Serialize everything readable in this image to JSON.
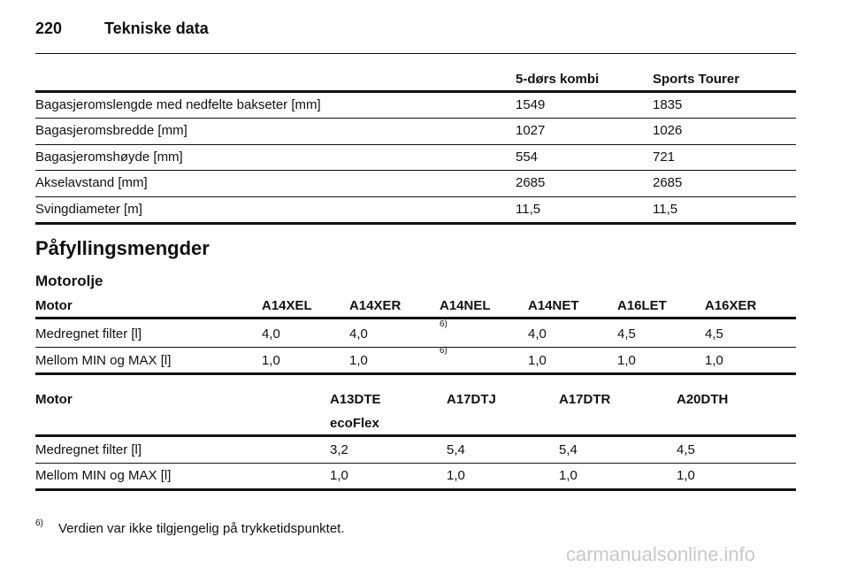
{
  "header": {
    "page_number": "220",
    "title": "Tekniske data"
  },
  "table1": {
    "header": [
      "5-dørs kombi",
      "Sports Tourer"
    ],
    "rows": [
      [
        "Bagasjeromslengde med nedfelte bakseter [mm]",
        "1549",
        "1835"
      ],
      [
        "Bagasjeromsbredde [mm]",
        "1027",
        "1026"
      ],
      [
        "Bagasjeromshøyde [mm]",
        "554",
        "721"
      ],
      [
        "Akselavstand [mm]",
        "2685",
        "2685"
      ],
      [
        "Svingdiameter [m]",
        "11,5",
        "11,5"
      ]
    ]
  },
  "section_title": "Påfyllingsmengder",
  "subsection_title": "Motorolje",
  "table2": {
    "header": [
      "Motor",
      "A14XEL",
      "A14XER",
      "A14NEL",
      "A14NET",
      "A16LET",
      "A16XER"
    ],
    "rows": [
      [
        "Medregnet filter [l]",
        "4,0",
        "4,0",
        "6)",
        "4,0",
        "4,5",
        "4,5"
      ],
      [
        "Mellom MIN og MAX [l]",
        "1,0",
        "1,0",
        "6)",
        "1,0",
        "1,0",
        "1,0"
      ]
    ]
  },
  "table3": {
    "header": [
      "Motor",
      "A13DTE",
      "A17DTJ",
      "A17DTR",
      "A20DTH"
    ],
    "header_sub": "ecoFlex",
    "rows": [
      [
        "Medregnet filter [l]",
        "3,2",
        "5,4",
        "5,4",
        "4,5"
      ],
      [
        "Mellom MIN og MAX [l]",
        "1,0",
        "1,0",
        "1,0",
        "1,0"
      ]
    ]
  },
  "footnote": {
    "mark": "6)",
    "text": "Verdien var ikke tilgjengelig på trykketidspunktet."
  },
  "watermark": "carmanualsonline.info"
}
